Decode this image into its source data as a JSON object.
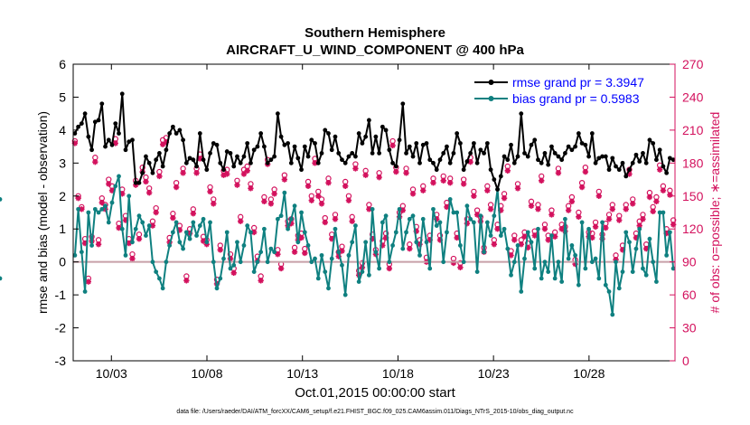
{
  "chart_data": {
    "type": "line",
    "title": "Southern Hemisphere",
    "subtitle": "AIRCRAFT_U_WIND_COMPONENT @ 400 hPa",
    "xlabel": "Oct.01,2015 00:00:00 start",
    "ylabel": "rmse and bias (model - observation)",
    "y2label": "# of obs: o=possible; ∗=assimilated",
    "footnote": "data file: /Users/raeder/DAI/ATM_forcXX/CAM6_setup/f.e21.FHIST_BGC.f09_025.CAM6assim.011/Diags_NTrS_2015-10/obs_diag_output.nc",
    "xlim": [
      1,
      32.5
    ],
    "ylim": [
      -3,
      6
    ],
    "y2lim": [
      0,
      270
    ],
    "x_ticks": [
      3,
      8,
      13,
      18,
      23,
      28
    ],
    "x_tick_labels": [
      "10/03",
      "10/08",
      "10/13",
      "10/18",
      "10/23",
      "10/28"
    ],
    "y_ticks": [
      -3,
      -2,
      -1,
      0,
      1,
      2,
      3,
      4,
      5,
      6
    ],
    "y_tick_labels": [
      "-3",
      "-2",
      "-1",
      "0",
      "1",
      "2",
      "3",
      "4",
      "5",
      "6"
    ],
    "y2_ticks": [
      0,
      30,
      60,
      90,
      120,
      150,
      180,
      210,
      240,
      270
    ],
    "y2_tick_labels": [
      "0",
      "30",
      "60",
      "90",
      "120",
      "150",
      "180",
      "210",
      "240",
      "270"
    ],
    "zero_line": 0,
    "colors": {
      "rmse": "#000000",
      "bias": "#0f8080",
      "obs": "#d3115d",
      "legend_text": "#0000ff",
      "zero": "#c8a0a8",
      "y2axis": "#d3115d"
    },
    "series": [
      {
        "name": "rmse",
        "legend": "rmse grand pr = 3.3947",
        "values": [
          3.9,
          4.1,
          4.2,
          4.5,
          3.8,
          3.4,
          4.25,
          4.3,
          4.8,
          3.5,
          3.7,
          3.55,
          4.2,
          3.9,
          5.1,
          3.4,
          3.65,
          3.7,
          2.4,
          2.4,
          2.7,
          3.2,
          3.0,
          2.7,
          3.1,
          3.3,
          2.9,
          3.4,
          3.9,
          4.1,
          3.9,
          4.0,
          3.7,
          3.0,
          3.15,
          3.1,
          2.9,
          3.9,
          3.1,
          2.8,
          3.3,
          3.6,
          3.55,
          3.0,
          2.8,
          3.35,
          3.3,
          2.9,
          3.2,
          3.0,
          3.2,
          3.6,
          3.0,
          3.4,
          3.5,
          3.9,
          3.5,
          3.0,
          3.1,
          3.2,
          4.5,
          3.8,
          3.55,
          3.6,
          3.0,
          3.5,
          3.15,
          2.8,
          3.5,
          3.2,
          3.7,
          3.6,
          3.0,
          3.3,
          4.0,
          3.9,
          3.4,
          3.8,
          3.3,
          3.1,
          3.0,
          3.2,
          3.3,
          3.2,
          3.9,
          3.6,
          3.8,
          4.3,
          3.3,
          3.8,
          3.3,
          4.1,
          4.0,
          3.4,
          3.0,
          2.9,
          3.7,
          4.8,
          3.3,
          3.5,
          3.2,
          3.6,
          3.0,
          3.55,
          3.6,
          3.1,
          3.0,
          2.8,
          3.1,
          3.3,
          3.5,
          3.0,
          3.3,
          3.9,
          3.6,
          2.8,
          3.05,
          3.3,
          3.6,
          3.0,
          3.4,
          3.3,
          3.6,
          2.8,
          2.5,
          2.2,
          2.6,
          3.2,
          3.1,
          3.55,
          3.0,
          3.2,
          4.5,
          3.3,
          3.2,
          3.55,
          3.7,
          3.1,
          3.0,
          3.3,
          2.95,
          3.5,
          3.3,
          3.2,
          3.1,
          3.3,
          3.5,
          3.4,
          3.5,
          3.9,
          3.6,
          3.55,
          3.2,
          3.9,
          3.0,
          3.15,
          3.2,
          3.2,
          2.8,
          3.15,
          2.9,
          2.8,
          3.0,
          2.6,
          2.8,
          3.0,
          3.25,
          3.05,
          3.3,
          3.0,
          3.7,
          3.6,
          3.1,
          3.4,
          2.9,
          2.7,
          3.15,
          3.1
        ]
      },
      {
        "name": "bias",
        "legend": "bias grand pr = 0.5983",
        "values": [
          0.2,
          1.6,
          0.3,
          -0.9,
          1.5,
          0.5,
          1.6,
          1.5,
          1.6,
          1.7,
          1.2,
          1.8,
          2.3,
          2.6,
          1.0,
          0.2,
          2.0,
          0.6,
          1.0,
          1.4,
          1.2,
          0.8,
          1.1,
          0.0,
          -0.3,
          -0.5,
          -0.8,
          0.0,
          0.5,
          0.9,
          1.2,
          0.6,
          0.4,
          0.9,
          0.7,
          1.2,
          0.8,
          1.1,
          1.3,
          0.6,
          1.2,
          0.0,
          -0.8,
          -0.5,
          0.1,
          0.9,
          -0.2,
          -0.1,
          0.6,
          0.0,
          0.5,
          1.1,
          0.9,
          -0.3,
          0.0,
          0.3,
          1.0,
          0.0,
          0.4,
          0.3,
          1.3,
          1.4,
          2.1,
          1.0,
          1.3,
          1.7,
          0.6,
          1.5,
          0.9,
          0.5,
          0.0,
          0.1,
          -0.5,
          0.2,
          -0.3,
          -0.8,
          0.1,
          1.0,
          0.3,
          -0.1,
          -1.0,
          0.2,
          0.6,
          1.1,
          -0.6,
          -0.3,
          0.6,
          -0.4,
          1.6,
          0.3,
          -0.2,
          1.2,
          1.4,
          0.0,
          0.5,
          0.9,
          1.6,
          0.4,
          0.9,
          1.3,
          1.4,
          0.6,
          0.2,
          1.3,
          0.6,
          -0.2,
          1.6,
          1.1,
          1.2,
          0.0,
          0.9,
          1.9,
          1.5,
          1.5,
          0.5,
          0.0,
          1.7,
          1.3,
          1.2,
          -0.3,
          1.4,
          0.3,
          1.2,
          0.8,
          1.4,
          2.2,
          0.8,
          1.0,
          0.4,
          -0.4,
          0.0,
          0.5,
          -0.9,
          0.1,
          0.9,
          0.6,
          -0.2,
          1.0,
          -0.5,
          0.0,
          -0.3,
          0.8,
          -0.5,
          0.0,
          -0.6,
          1.3,
          0.1,
          0.5,
          0.2,
          -0.7,
          1.2,
          -0.2,
          1.0,
          0.0,
          0.1,
          -0.5,
          1.2,
          -0.7,
          -0.9,
          -1.6,
          0.0,
          -0.8,
          -0.3,
          0.9,
          0.6,
          -0.3,
          0.4,
          1.0,
          -0.2,
          -0.4,
          0.7,
          0.0,
          -0.6,
          1.5,
          1.5,
          0.2,
          0.9,
          -0.2,
          -0.5,
          1.9
        ]
      },
      {
        "name": "obs_possible",
        "marker": "o",
        "values": [
          200,
          150,
          140,
          111,
          75,
          113,
          185,
          110,
          148,
          142,
          165,
          159,
          202,
          125,
          156,
          132,
          111,
          97,
          164,
          115,
          176,
          167,
          157,
          127,
          139,
          172,
          201,
          203,
          112,
          134,
          162,
          123,
          175,
          77,
          120,
          138,
          175,
          188,
          113,
          110,
          158,
          147,
          74,
          105,
          173,
          174,
          97,
          84,
          164,
          131,
          174,
          177,
          161,
          121,
          95,
          77,
          149,
          183,
          147,
          156,
          101,
          88,
          169,
          127,
          129,
          103,
          114,
          116,
          102,
          163,
          150,
          184,
          154,
          147,
          130,
          166,
          115,
          133,
          99,
          104,
          163,
          150,
          131,
          179,
          82,
          89,
          173,
          142,
          115,
          101,
          171,
          109,
          116,
          88,
          200,
          176,
          135,
          141,
          175,
          106,
          156,
          122,
          110,
          159,
          94,
          114,
          166,
          133,
          114,
          168,
          144,
          166,
          93,
          116,
          89,
          165,
          129,
          185,
          154,
          137,
          131,
          103,
          159,
          142,
          110,
          124,
          141,
          152,
          177,
          100,
          114,
          161,
          110,
          117,
          107,
          145,
          118,
          142,
          168,
          124,
          114,
          137,
          117,
          175,
          124,
          122,
          141,
          149,
          92,
          135,
          162,
          176,
          117,
          116,
          126,
          154,
          115,
          125,
          133,
          142,
          96,
          132,
          105,
          142,
          174,
          147,
          116,
          127,
          133,
          106,
          153,
          140,
          149,
          178,
          159,
          120,
          155,
          128,
          110,
          104,
          120,
          166,
          75,
          183
        ]
      },
      {
        "name": "obs_assimilated",
        "marker": "*",
        "values": [
          198,
          148,
          138,
          107,
          72,
          109,
          181,
          106,
          144,
          138,
          161,
          155,
          198,
          121,
          152,
          128,
          107,
          93,
          160,
          111,
          172,
          163,
          153,
          123,
          135,
          168,
          197,
          199,
          108,
          130,
          158,
          119,
          171,
          73,
          116,
          134,
          171,
          184,
          109,
          106,
          154,
          143,
          70,
          101,
          169,
          170,
          93,
          80,
          160,
          127,
          170,
          173,
          157,
          117,
          91,
          73,
          145,
          179,
          143,
          152,
          97,
          84,
          165,
          123,
          125,
          99,
          110,
          112,
          98,
          159,
          146,
          180,
          150,
          143,
          126,
          162,
          111,
          129,
          95,
          100,
          159,
          146,
          127,
          175,
          78,
          85,
          169,
          138,
          111,
          97,
          167,
          105,
          112,
          84,
          196,
          172,
          131,
          137,
          171,
          102,
          152,
          118,
          106,
          155,
          90,
          110,
          162,
          129,
          110,
          164,
          140,
          162,
          89,
          112,
          85,
          161,
          125,
          181,
          150,
          133,
          127,
          99,
          155,
          138,
          106,
          120,
          137,
          148,
          173,
          96,
          110,
          157,
          106,
          113,
          103,
          141,
          114,
          138,
          164,
          120,
          110,
          133,
          113,
          171,
          120,
          118,
          137,
          145,
          88,
          131,
          158,
          172,
          113,
          112,
          122,
          150,
          111,
          121,
          129,
          138,
          92,
          128,
          101,
          138,
          170,
          143,
          112,
          123,
          129,
          102,
          149,
          136,
          145,
          174,
          155,
          116,
          151,
          124,
          106,
          100,
          116,
          162,
          71,
          179
        ]
      }
    ]
  }
}
